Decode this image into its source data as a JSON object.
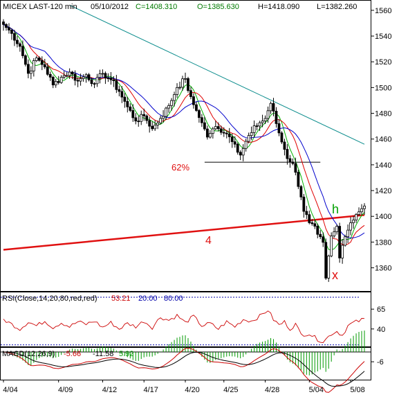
{
  "header": {
    "symbol_label": "MICEX LAST-120 min",
    "date": "05/10/2012",
    "close_label": "C=1408.310",
    "open_label": "O=1385.630",
    "high_label": "H=1418.090",
    "low_label": "L=1382.260"
  },
  "annotations": {
    "fib_label": "62%",
    "wave_label": "4",
    "h_label": "h",
    "x_label": "x"
  },
  "rsi": {
    "label": "RSI(Close,14,20,80,red,red)",
    "value": "53.21",
    "low": "20.00",
    "high": "80.00"
  },
  "macd": {
    "label": "MACD(12,26,9)",
    "macd": "-5.66",
    "signal": "-11.58",
    "hist": "5.92"
  },
  "colors": {
    "up": "#000000",
    "ma_fast": "#00b000",
    "ma_mid": "#e00000",
    "ma_slow": "#0000cc",
    "trendline": "#0a8c8c",
    "wave4_line": "#e01010",
    "rsi_line": "#cc0000",
    "guide": "#0000aa",
    "macd_hist": "#009900"
  },
  "chart_data": [
    {
      "type": "candlestick",
      "title": "MICEX LAST-120 min",
      "ylim": [
        1342,
        1568
      ],
      "y_ticks": [
        "1560",
        "1540",
        "1520",
        "1500",
        "1480",
        "1460",
        "1440",
        "1420",
        "1400",
        "1380",
        "1360"
      ],
      "x_ticks": [
        "4/04",
        "4/09",
        "4/12",
        "4/17",
        "4/20",
        "4/25",
        "4/28",
        "5/04",
        "5/08"
      ],
      "x_tick_positions": [
        0,
        20,
        36,
        51,
        66,
        80,
        95,
        111,
        126
      ],
      "n_bars": 132,
      "ohlc_anchors": [
        [
          0,
          1549
        ],
        [
          3,
          1542
        ],
        [
          6,
          1532
        ],
        [
          9,
          1511
        ],
        [
          12,
          1523
        ],
        [
          15,
          1516
        ],
        [
          18,
          1502
        ],
        [
          21,
          1508
        ],
        [
          24,
          1512
        ],
        [
          27,
          1505
        ],
        [
          30,
          1510
        ],
        [
          33,
          1503
        ],
        [
          36,
          1511
        ],
        [
          39,
          1506
        ],
        [
          42,
          1497
        ],
        [
          45,
          1485
        ],
        [
          48,
          1474
        ],
        [
          51,
          1478
        ],
        [
          54,
          1468
        ],
        [
          57,
          1476
        ],
        [
          60,
          1486
        ],
        [
          63,
          1500
        ],
        [
          66,
          1507
        ],
        [
          68,
          1491
        ],
        [
          71,
          1478
        ],
        [
          74,
          1462
        ],
        [
          77,
          1469
        ],
        [
          80,
          1466
        ],
        [
          83,
          1460
        ],
        [
          86,
          1448
        ],
        [
          89,
          1462
        ],
        [
          92,
          1471
        ],
        [
          95,
          1476
        ],
        [
          97,
          1488
        ],
        [
          99,
          1472
        ],
        [
          101,
          1458
        ],
        [
          103,
          1446
        ],
        [
          105,
          1441
        ],
        [
          107,
          1425
        ],
        [
          109,
          1405
        ],
        [
          111,
          1395
        ],
        [
          113,
          1390
        ],
        [
          116,
          1378
        ],
        [
          117,
          1352
        ],
        [
          119,
          1384
        ],
        [
          121,
          1392
        ],
        [
          122,
          1370
        ],
        [
          124,
          1385
        ],
        [
          126,
          1395
        ],
        [
          128,
          1402
        ],
        [
          130,
          1405
        ],
        [
          131,
          1408
        ]
      ],
      "lines": [
        {
          "name": "trendline",
          "points": [
            [
              24,
              1564
            ],
            [
              131,
              1456
            ]
          ]
        },
        {
          "name": "wave-4 line",
          "points": [
            [
              0,
              1374
            ],
            [
              131,
              1401
            ]
          ]
        },
        {
          "name": "62% level",
          "points": [
            [
              73,
              1442
            ],
            [
              115,
              1442
            ]
          ]
        }
      ]
    },
    {
      "type": "line",
      "title": "RSI(Close,14,20,80,red,red)",
      "ylim": [
        18,
        87
      ],
      "y_ticks": [
        "65",
        "40"
      ],
      "guides": [
        20,
        80
      ],
      "last_value": 53.21,
      "anchors": [
        [
          0,
          52
        ],
        [
          3,
          46
        ],
        [
          6,
          40
        ],
        [
          9,
          49
        ],
        [
          12,
          44
        ],
        [
          15,
          50
        ],
        [
          18,
          42
        ],
        [
          21,
          48
        ],
        [
          24,
          43
        ],
        [
          27,
          49
        ],
        [
          30,
          46
        ],
        [
          33,
          50
        ],
        [
          36,
          42
        ],
        [
          39,
          48
        ],
        [
          42,
          40
        ],
        [
          45,
          47
        ],
        [
          48,
          43
        ],
        [
          51,
          50
        ],
        [
          54,
          42
        ],
        [
          57,
          55
        ],
        [
          60,
          51
        ],
        [
          63,
          57
        ],
        [
          66,
          48
        ],
        [
          69,
          56
        ],
        [
          72,
          44
        ],
        [
          75,
          47
        ],
        [
          78,
          40
        ],
        [
          81,
          49
        ],
        [
          84,
          43
        ],
        [
          87,
          52
        ],
        [
          90,
          50
        ],
        [
          93,
          56
        ],
        [
          96,
          64
        ],
        [
          98,
          52
        ],
        [
          100,
          45
        ],
        [
          102,
          49
        ],
        [
          104,
          40
        ],
        [
          106,
          46
        ],
        [
          108,
          33
        ],
        [
          111,
          34
        ],
        [
          114,
          27
        ],
        [
          116,
          24
        ],
        [
          117,
          27
        ],
        [
          119,
          34
        ],
        [
          121,
          37
        ],
        [
          123,
          32
        ],
        [
          125,
          44
        ],
        [
          127,
          48
        ],
        [
          129,
          50
        ],
        [
          131,
          53
        ]
      ]
    },
    {
      "type": "line",
      "title": "MACD(12,26,9)",
      "ylim": [
        -17,
        3
      ],
      "y_ticks": [
        "-6"
      ],
      "series": [
        {
          "name": "MACD",
          "last_value": -5.66
        },
        {
          "name": "Signal",
          "last_value": -11.58
        },
        {
          "name": "Histogram",
          "last_value": 5.92
        }
      ]
    }
  ]
}
